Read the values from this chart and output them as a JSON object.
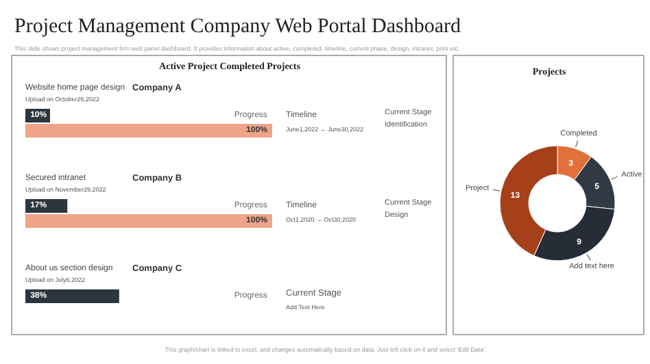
{
  "chart_data": [
    {
      "type": "other",
      "title": "Project Management Company Web Portal Dashboard",
      "subtitle": "This slide shows project management firm web panel dashboard. It provides information about active, completed, timeline, current phase, design, intranet, print etc.",
      "annotations": [
        "This graph/chart is linked to excel, and changes automatically based on data. Just left click on it and select 'Edit Data'."
      ]
    },
    {
      "type": "bar",
      "orientation": "horizontal",
      "title": "Active Project Completed Projects",
      "categories": [
        "Website home page design",
        "Secured intranet",
        "About us section design"
      ],
      "series": [
        {
          "name": "Progress",
          "color": "#2d353d",
          "values": [
            10,
            17,
            38
          ],
          "value_labels": [
            "10%",
            "17%",
            "38%"
          ]
        },
        {
          "color": "#eea58a",
          "values": [
            100,
            100,
            null
          ],
          "value_labels": [
            "100%",
            "100%",
            null
          ]
        }
      ],
      "annotations": [
        "Company A",
        "Upload on October26,2022",
        "Timeline",
        "June1,2022 → June30,2022",
        "Current Stage",
        "Identification",
        "Company B",
        "Upload on November29,2022",
        "Timeline",
        "Oct1,2020 → Oct30,2020",
        "Current Stage",
        "Design",
        "Company C",
        "Upload on July6,2022",
        "Current Stage",
        "Add Text Here"
      ]
    },
    {
      "type": "donut",
      "title": "Projects",
      "categories": [
        "Completed",
        "Active",
        "Add text here",
        "Project"
      ],
      "values": [
        3,
        5,
        9,
        13
      ],
      "colors": [
        "#e2703a",
        "#2f3a44",
        "#262d36",
        "#a5401b"
      ],
      "data_labels": true
    }
  ]
}
